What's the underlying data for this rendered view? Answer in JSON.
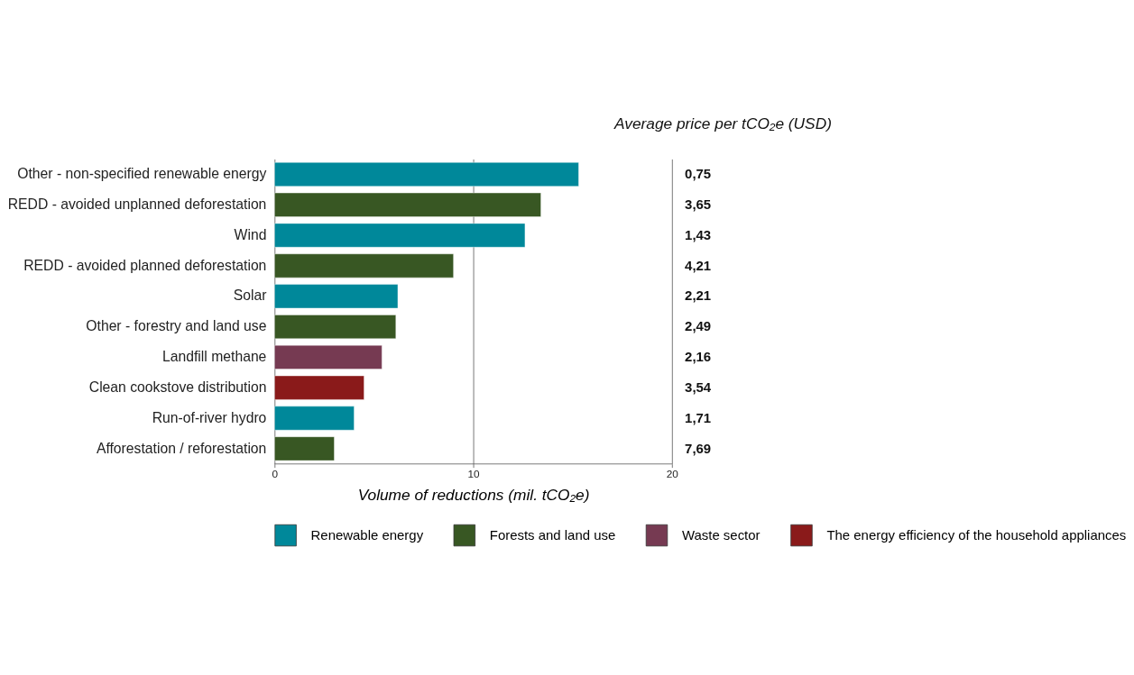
{
  "chart_data": {
    "type": "bar",
    "orientation": "horizontal",
    "stacked": true,
    "categories": [
      "Other - non-specified renewable energy",
      "REDD - avoided unplanned deforestation",
      "Wind",
      "REDD - avoided planned deforestation",
      "Solar",
      "Other - forestry and land use",
      "Landfill methane",
      "Clean cookstove distribution",
      "Run-of-river hydro",
      "Afforestation /  reforestation"
    ],
    "series": [
      {
        "name": "Renewable energy",
        "color": "#00889a",
        "values": [
          15.3,
          null,
          12.6,
          null,
          6.2,
          null,
          null,
          null,
          4.0,
          null
        ]
      },
      {
        "name": "Forests and land use",
        "color": "#385723",
        "values": [
          null,
          13.4,
          null,
          9.0,
          null,
          6.1,
          null,
          null,
          null,
          3.0
        ]
      },
      {
        "name": "Waste sector",
        "color": "#763a52",
        "values": [
          null,
          null,
          null,
          null,
          null,
          null,
          5.4,
          null,
          null,
          null
        ]
      },
      {
        "name": "The energy efficiency of the household appliances",
        "color": "#8a1a1a",
        "values": [
          null,
          null,
          null,
          null,
          null,
          null,
          null,
          4.5,
          null,
          null
        ]
      }
    ],
    "xlim": [
      0,
      20
    ],
    "xticks": [
      0,
      10,
      20
    ],
    "grid": "x",
    "xlabel": "Volume of reductions (mil. tCO₂e)",
    "legend": "bottom",
    "annotations": [
      "Average price per tCO₂e (USD)",
      "0,75",
      "3,65",
      "1,43",
      "4,21",
      "2,21",
      "2,49",
      "2,16",
      "3,54",
      "1,71",
      "7,69"
    ]
  }
}
